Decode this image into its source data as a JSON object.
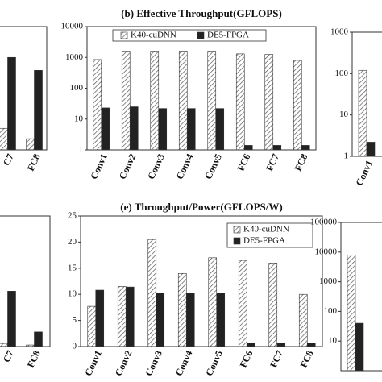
{
  "chart_data": [
    {
      "type": "bar",
      "log": true,
      "categories": [
        "C7",
        "FC8"
      ],
      "ylim": [
        1,
        10000
      ],
      "series": [
        {
          "name": null,
          "color": "#ffffff",
          "hatch": true,
          "values": [
            5,
            2.3
          ]
        },
        {
          "name": null,
          "color": "#222222",
          "hatch": false,
          "values": [
            1000,
            380
          ]
        }
      ]
    },
    {
      "type": "bar",
      "log": true,
      "title": "(b) Effective Throughput(GFLOPS)",
      "categories": [
        "Conv1",
        "Conv2",
        "Conv3",
        "Conv4",
        "Conv5",
        "FC6",
        "FC7",
        "FC8"
      ],
      "ylim": [
        1,
        10000
      ],
      "yticks": [
        1,
        10,
        100,
        1000,
        10000
      ],
      "legend": "top",
      "series": [
        {
          "name": "K40-cuDNN",
          "color": "#ffffff",
          "hatch": true,
          "values": [
            850,
            1600,
            1600,
            1600,
            1600,
            1300,
            1250,
            800
          ]
        },
        {
          "name": "DE5-FPGA",
          "color": "#222222",
          "hatch": false,
          "values": [
            23,
            25,
            22,
            22,
            22,
            1.4,
            1.4,
            1.4
          ]
        }
      ]
    },
    {
      "type": "bar",
      "log": true,
      "categories": [
        "Conv1"
      ],
      "ylim": [
        1,
        1000
      ],
      "yticks": [
        1,
        10,
        100,
        1000
      ],
      "series": [
        {
          "name": null,
          "color": "#ffffff",
          "hatch": true,
          "values": [
            120
          ]
        },
        {
          "name": null,
          "color": "#222222",
          "hatch": false,
          "values": [
            2.2
          ]
        }
      ]
    },
    {
      "type": "bar",
      "log": false,
      "categories": [
        "C7",
        "FC8"
      ],
      "ylim": [
        0,
        25
      ],
      "series": [
        {
          "name": null,
          "color": "#ffffff",
          "hatch": true,
          "values": [
            0.6,
            0.3
          ]
        },
        {
          "name": null,
          "color": "#222222",
          "hatch": false,
          "values": [
            10.6,
            2.8
          ]
        }
      ]
    },
    {
      "type": "bar",
      "log": false,
      "title": "(e) Throughput/Power(GFLOPS/W)",
      "categories": [
        "Conv1",
        "Conv2",
        "Conv3",
        "Conv4",
        "Conv5",
        "FC6",
        "FC7",
        "FC8"
      ],
      "ylim": [
        0,
        25
      ],
      "yticks": [
        0,
        5,
        10,
        15,
        20,
        25
      ],
      "legend": "top right",
      "series": [
        {
          "name": "K40-cuDNN",
          "color": "#ffffff",
          "hatch": true,
          "values": [
            7.7,
            11.5,
            20.5,
            14,
            17,
            16.5,
            16,
            10
          ]
        },
        {
          "name": "DE5-FPGA",
          "color": "#222222",
          "hatch": false,
          "values": [
            10.8,
            11.4,
            10.2,
            10.2,
            10.2,
            0.7,
            0.7,
            0.7
          ]
        }
      ]
    },
    {
      "type": "bar",
      "log": true,
      "categories": [
        null
      ],
      "ylim": [
        1,
        100000
      ],
      "yticks": [
        10,
        100,
        1000,
        10000,
        100000
      ],
      "series": [
        {
          "name": null,
          "color": "#ffffff",
          "hatch": true,
          "values": [
            8000
          ]
        },
        {
          "name": null,
          "color": "#222222",
          "hatch": false,
          "values": [
            40
          ]
        }
      ]
    }
  ]
}
